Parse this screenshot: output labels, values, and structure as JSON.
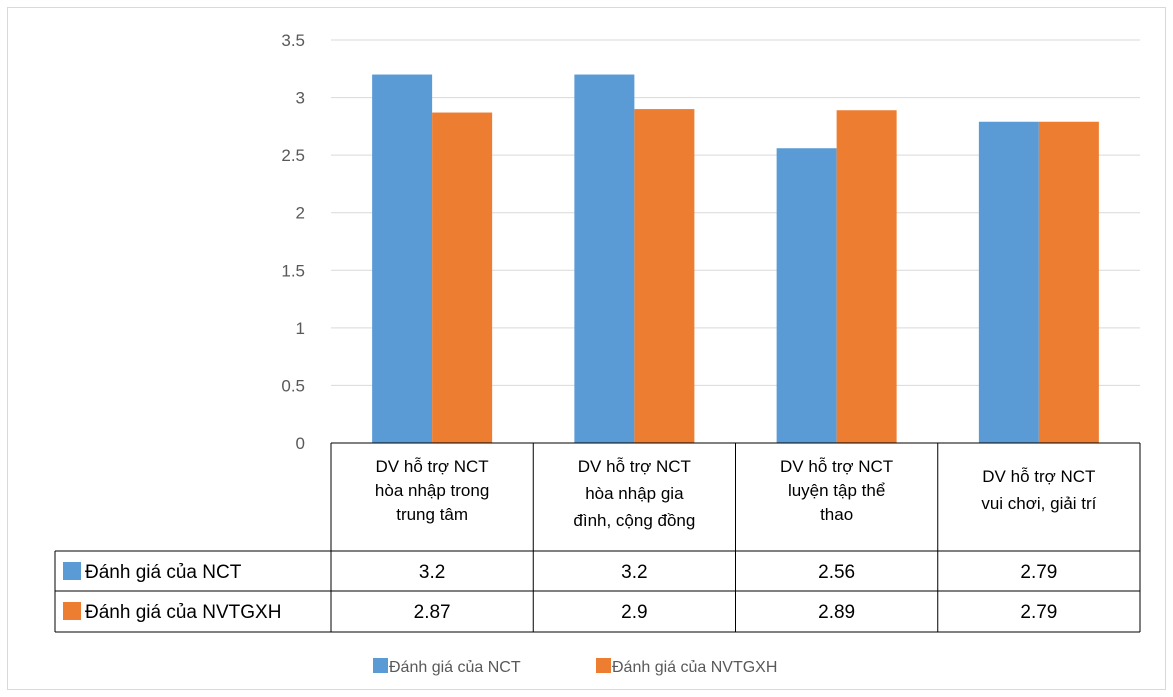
{
  "chart_data": {
    "type": "bar",
    "categories": [
      [
        "DV hỗ trợ NCT",
        "hòa nhập trong",
        "trung tâm"
      ],
      [
        "DV hỗ trợ NCT",
        "hòa nhập gia",
        "đình, cộng đồng"
      ],
      [
        "DV hỗ trợ NCT",
        "luyện tập thể",
        "thao"
      ],
      [
        "DV hỗ trợ NCT",
        "vui chơi, giải trí"
      ]
    ],
    "series": [
      {
        "name": "Đánh giá của NCT",
        "color": "#5b9bd5",
        "values": [
          3.2,
          3.2,
          2.56,
          2.79
        ],
        "labels": [
          "3.2",
          "3.2",
          "2.56",
          "2.79"
        ]
      },
      {
        "name": "Đánh giá của NVTGXH",
        "color": "#ed7d31",
        "values": [
          2.87,
          2.9,
          2.89,
          2.79
        ],
        "labels": [
          "2.87",
          "2.9",
          "2.89",
          "2.79"
        ]
      }
    ],
    "ylim": [
      0,
      3.5
    ],
    "yticks": [
      "0",
      "0.5",
      "1",
      "1.5",
      "2",
      "2.5",
      "3",
      "3.5"
    ],
    "grid": true,
    "data_table": true,
    "legend_position": "bottom"
  }
}
